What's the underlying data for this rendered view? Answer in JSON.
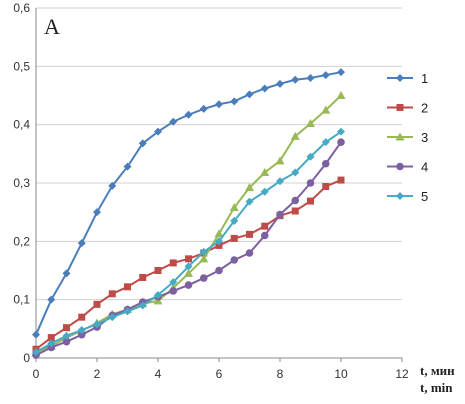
{
  "chart_data": {
    "type": "line",
    "panel_label": "A",
    "xlabel_ru": "t, мин",
    "xlabel_en": "t, min",
    "ylabel": "",
    "xlim": [
      0,
      12
    ],
    "ylim": [
      0,
      0.6
    ],
    "xticks": [
      "0",
      "2",
      "4",
      "6",
      "8",
      "10",
      "12"
    ],
    "yticks": [
      "0",
      "0,1",
      "0,2",
      "0,3",
      "0,4",
      "0,5",
      "0,6"
    ],
    "grid": "horizontal",
    "legend_position": "right",
    "x": [
      0,
      0.5,
      1,
      1.5,
      2,
      2.5,
      3,
      3.5,
      4,
      4.5,
      5,
      5.5,
      6,
      6.5,
      7,
      7.5,
      8,
      8.5,
      9,
      9.5,
      10
    ],
    "series": [
      {
        "name": "1",
        "color": "#4a7ebb",
        "marker": "diamond",
        "values": [
          0.04,
          0.1,
          0.145,
          0.197,
          0.25,
          0.295,
          0.328,
          0.368,
          0.388,
          0.405,
          0.417,
          0.427,
          0.435,
          0.44,
          0.452,
          0.462,
          0.47,
          0.477,
          0.48,
          0.485,
          0.49
        ]
      },
      {
        "name": "2",
        "color": "#be4b48",
        "marker": "square",
        "values": [
          0.015,
          0.035,
          0.052,
          0.07,
          0.092,
          0.11,
          0.122,
          0.138,
          0.15,
          0.163,
          0.17,
          0.18,
          0.193,
          0.205,
          0.212,
          0.226,
          0.244,
          0.252,
          0.269,
          0.294,
          0.305
        ]
      },
      {
        "name": "3",
        "color": "#98b954",
        "marker": "triangle",
        "values": [
          0.01,
          0.02,
          0.035,
          0.047,
          0.06,
          0.075,
          0.083,
          0.093,
          0.098,
          0.12,
          0.145,
          0.17,
          0.213,
          0.258,
          0.292,
          0.318,
          0.338,
          0.38,
          0.402,
          0.425,
          0.45
        ]
      },
      {
        "name": "4",
        "color": "#7d60a0",
        "marker": "circle",
        "values": [
          0.005,
          0.018,
          0.028,
          0.04,
          0.053,
          0.073,
          0.083,
          0.096,
          0.105,
          0.115,
          0.125,
          0.137,
          0.15,
          0.168,
          0.18,
          0.21,
          0.246,
          0.27,
          0.3,
          0.333,
          0.37
        ]
      },
      {
        "name": "5",
        "color": "#46aac5",
        "marker": "diamond",
        "values": [
          0.01,
          0.025,
          0.038,
          0.048,
          0.058,
          0.07,
          0.08,
          0.09,
          0.108,
          0.13,
          0.157,
          0.182,
          0.2,
          0.235,
          0.268,
          0.285,
          0.303,
          0.318,
          0.345,
          0.37,
          0.388
        ]
      }
    ]
  }
}
